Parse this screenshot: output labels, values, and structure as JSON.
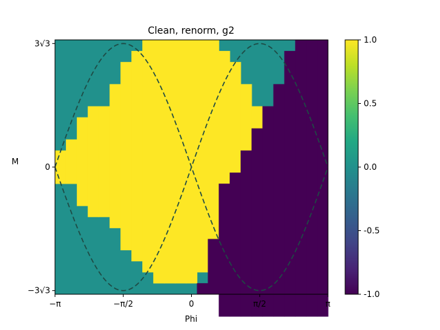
{
  "chart_data": {
    "type": "heatmap",
    "title": "Clean, renorm, g2",
    "xlabel": "Phi",
    "ylabel": "M",
    "xlim": [
      -3.14159,
      3.14159
    ],
    "ylim": [
      -5.35,
      5.35
    ],
    "x_ticks": [
      {
        "value": -3.14159,
        "label": "−π"
      },
      {
        "value": -1.5708,
        "label": "−π/2"
      },
      {
        "value": 0,
        "label": "0"
      },
      {
        "value": 1.5708,
        "label": "π/2"
      },
      {
        "value": 3.14159,
        "label": "π"
      }
    ],
    "y_ticks": [
      {
        "value": 5.196,
        "label": "3√3"
      },
      {
        "value": 0,
        "label": "0"
      },
      {
        "value": -5.196,
        "label": "−3√3"
      }
    ],
    "grid": false,
    "grid_size": [
      25,
      23
    ],
    "background_value": 0.0,
    "regions": [
      {
        "value": 1.0,
        "col_spans": [
          [
            10,
            12
          ],
          [
            9,
            12
          ],
          [
            7,
            14
          ],
          [
            6,
            15
          ],
          [
            6,
            15
          ],
          [
            4,
            16
          ],
          [
            2,
            18
          ],
          [
            1,
            19
          ],
          [
            0,
            20
          ],
          [
            0,
            21
          ],
          [
            0,
            21
          ],
          [
            0,
            21
          ],
          [
            0,
            21
          ],
          [
            0,
            20
          ],
          [
            0,
            19
          ],
          [
            1,
            17
          ],
          [
            2,
            16
          ],
          [
            4,
            15
          ],
          [
            6,
            14
          ],
          [
            6,
            13
          ],
          [
            8,
            12
          ]
        ]
      },
      {
        "value": -1.0,
        "col_spans": [
          [
            22,
            22
          ],
          [
            18,
            22
          ],
          [
            13,
            24
          ],
          [
            12,
            24
          ],
          [
            10,
            24
          ],
          [
            8,
            24
          ],
          [
            6,
            24
          ],
          [
            4,
            24
          ],
          [
            1,
            24
          ],
          [
            0,
            24
          ],
          [
            0,
            24
          ],
          [
            0,
            24
          ],
          [
            0,
            24
          ],
          [
            0,
            24
          ],
          [
            2,
            24
          ],
          [
            4,
            24
          ],
          [
            6,
            24
          ],
          [
            8,
            24
          ],
          [
            10,
            24
          ],
          [
            13,
            24
          ],
          [
            19,
            22
          ]
        ]
      }
    ],
    "boundary": {
      "style": "dashed",
      "equation": "M = ±3√3·|sin(Phi)|",
      "color": "#1e4a44"
    },
    "colorbar": {
      "colormap": "viridis",
      "range": [
        -1.0,
        1.0
      ],
      "ticks": [
        {
          "value": 1.0,
          "label": "1.0"
        },
        {
          "value": 0.5,
          "label": "0.5"
        },
        {
          "value": 0.0,
          "label": "0.0"
        },
        {
          "value": -0.5,
          "label": "-0.5"
        },
        {
          "value": -1.0,
          "label": "-1.0"
        }
      ]
    }
  }
}
